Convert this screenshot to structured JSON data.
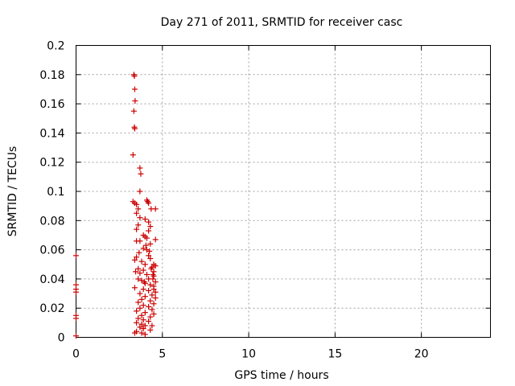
{
  "chart_data": {
    "type": "scatter",
    "title": "Day 271 of 2011, SRMTID for receiver casc",
    "xlabel": "GPS time / hours",
    "ylabel": "SRMTID / TECUs",
    "xlim": [
      0,
      24
    ],
    "ylim": [
      0,
      0.2
    ],
    "xticks": [
      0,
      5,
      10,
      15,
      20
    ],
    "xtick_labels": [
      "0",
      "5",
      "10",
      "15",
      "20"
    ],
    "yticks": [
      0,
      0.02,
      0.04,
      0.06,
      0.08,
      0.1,
      0.12,
      0.14,
      0.16,
      0.18,
      0.2
    ],
    "ytick_labels": [
      "0",
      "0.02",
      "0.04",
      "0.06",
      "0.08",
      "0.1",
      "0.12",
      "0.14",
      "0.16",
      "0.18",
      "0.2"
    ],
    "grid": true,
    "marker": "+",
    "color": "#cc0000",
    "series": [
      {
        "name": "SRMTID",
        "points": [
          [
            0.0,
            0.056
          ],
          [
            0.0,
            0.036
          ],
          [
            0.0,
            0.033
          ],
          [
            0.0,
            0.031
          ],
          [
            0.0,
            0.015
          ],
          [
            0.0,
            0.013
          ],
          [
            0.0,
            0.001
          ],
          [
            3.35,
            0.18
          ],
          [
            3.38,
            0.179
          ],
          [
            3.4,
            0.17
          ],
          [
            3.42,
            0.162
          ],
          [
            3.35,
            0.155
          ],
          [
            3.38,
            0.144
          ],
          [
            3.4,
            0.143
          ],
          [
            3.3,
            0.125
          ],
          [
            3.7,
            0.116
          ],
          [
            3.75,
            0.112
          ],
          [
            3.7,
            0.1
          ],
          [
            3.3,
            0.093
          ],
          [
            3.4,
            0.092
          ],
          [
            3.5,
            0.091
          ],
          [
            4.1,
            0.094
          ],
          [
            4.15,
            0.093
          ],
          [
            4.2,
            0.092
          ],
          [
            3.6,
            0.088
          ],
          [
            4.35,
            0.088
          ],
          [
            4.6,
            0.088
          ],
          [
            3.5,
            0.085
          ],
          [
            3.7,
            0.082
          ],
          [
            4.0,
            0.081
          ],
          [
            4.2,
            0.079
          ],
          [
            3.6,
            0.077
          ],
          [
            4.3,
            0.076
          ],
          [
            3.5,
            0.074
          ],
          [
            4.2,
            0.073
          ],
          [
            3.9,
            0.07
          ],
          [
            4.0,
            0.069
          ],
          [
            4.1,
            0.068
          ],
          [
            4.6,
            0.067
          ],
          [
            3.5,
            0.066
          ],
          [
            3.7,
            0.066
          ],
          [
            4.3,
            0.064
          ],
          [
            3.9,
            0.061
          ],
          [
            4.1,
            0.06
          ],
          [
            4.25,
            0.059
          ],
          [
            3.5,
            0.055
          ],
          [
            4.2,
            0.056
          ],
          [
            4.3,
            0.054
          ],
          [
            3.4,
            0.053
          ],
          [
            3.8,
            0.052
          ],
          [
            4.0,
            0.05
          ],
          [
            4.5,
            0.05
          ],
          [
            4.6,
            0.049
          ],
          [
            4.4,
            0.048
          ],
          [
            3.6,
            0.047
          ],
          [
            3.9,
            0.046
          ],
          [
            4.5,
            0.045
          ],
          [
            3.7,
            0.044
          ],
          [
            4.1,
            0.043
          ],
          [
            4.5,
            0.042
          ],
          [
            3.6,
            0.04
          ],
          [
            4.2,
            0.04
          ],
          [
            4.45,
            0.04
          ],
          [
            3.8,
            0.039
          ],
          [
            4.6,
            0.038
          ],
          [
            4.0,
            0.037
          ],
          [
            4.3,
            0.036
          ],
          [
            3.4,
            0.034
          ],
          [
            3.9,
            0.033
          ],
          [
            4.5,
            0.033
          ],
          [
            4.2,
            0.032
          ],
          [
            4.6,
            0.031
          ],
          [
            3.7,
            0.03
          ],
          [
            4.4,
            0.029
          ],
          [
            4.0,
            0.028
          ],
          [
            4.6,
            0.027
          ],
          [
            3.8,
            0.026
          ],
          [
            4.3,
            0.025
          ],
          [
            3.6,
            0.024
          ],
          [
            4.5,
            0.023
          ],
          [
            3.9,
            0.022
          ],
          [
            4.2,
            0.021
          ],
          [
            3.7,
            0.02
          ],
          [
            4.4,
            0.019
          ],
          [
            3.5,
            0.018
          ],
          [
            4.0,
            0.017
          ],
          [
            4.5,
            0.016
          ],
          [
            3.8,
            0.015
          ],
          [
            4.3,
            0.014
          ],
          [
            3.6,
            0.013
          ],
          [
            3.9,
            0.012
          ],
          [
            4.2,
            0.011
          ],
          [
            3.5,
            0.01
          ],
          [
            3.8,
            0.009
          ],
          [
            4.0,
            0.008
          ],
          [
            4.4,
            0.008
          ],
          [
            3.7,
            0.007
          ],
          [
            3.9,
            0.006
          ],
          [
            4.3,
            0.005
          ],
          [
            3.5,
            0.004
          ],
          [
            3.8,
            0.003
          ],
          [
            4.0,
            0.002
          ],
          [
            3.4,
            0.003
          ],
          [
            4.5,
            0.035
          ],
          [
            4.45,
            0.043
          ],
          [
            4.35,
            0.047
          ],
          [
            3.65,
            0.058
          ],
          [
            3.45,
            0.045
          ],
          [
            4.05,
            0.063
          ],
          [
            3.95,
            0.038
          ]
        ]
      }
    ]
  }
}
